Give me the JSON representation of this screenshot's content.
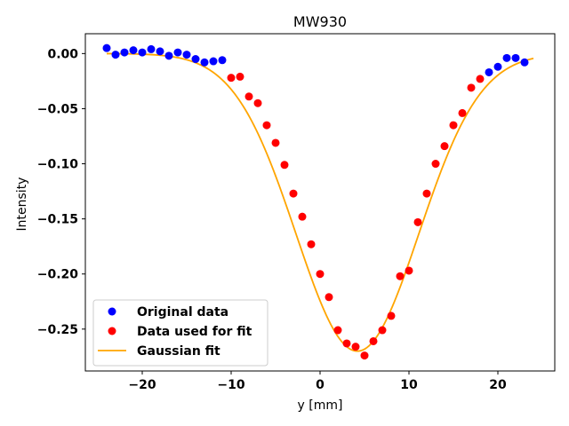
{
  "chart_data": {
    "type": "scatter",
    "title": "MW930",
    "xlabel": "y [mm]",
    "ylabel": "Intensity",
    "xlim": [
      -26.4,
      26.4
    ],
    "ylim": [
      -0.288,
      0.018
    ],
    "x_ticks": [
      -20,
      -10,
      0,
      10,
      20
    ],
    "x_tick_labels": [
      "−20",
      "−10",
      "0",
      "10",
      "20"
    ],
    "y_ticks": [
      0.0,
      -0.05,
      -0.1,
      -0.15,
      -0.2,
      -0.25
    ],
    "y_tick_labels": [
      "0.00",
      "−0.05",
      "−0.10",
      "−0.15",
      "−0.20",
      "−0.25"
    ],
    "grid": false,
    "legend_position": "lower-left",
    "series": [
      {
        "name": "Original data",
        "kind": "scatter",
        "color": "#0000ff",
        "x": [
          -24,
          -23,
          -22,
          -21,
          -20,
          -19,
          -18,
          -17,
          -16,
          -15,
          -14,
          -13,
          -12,
          -11,
          19,
          20,
          21,
          22,
          23
        ],
        "y": [
          0.005,
          -0.001,
          0.001,
          0.003,
          0.001,
          0.004,
          0.002,
          -0.002,
          0.001,
          -0.001,
          -0.005,
          -0.008,
          -0.007,
          -0.006,
          -0.017,
          -0.012,
          -0.004,
          -0.004,
          -0.008
        ]
      },
      {
        "name": "Data used for fit",
        "kind": "scatter",
        "color": "#ff0000",
        "x": [
          -10,
          -9,
          -8,
          -7,
          -6,
          -5,
          -4,
          -3,
          -2,
          -1,
          0,
          1,
          2,
          3,
          4,
          5,
          6,
          7,
          8,
          9,
          10,
          11,
          12,
          13,
          14,
          15,
          16,
          17,
          18
        ],
        "y": [
          -0.022,
          -0.021,
          -0.039,
          -0.045,
          -0.065,
          -0.081,
          -0.101,
          -0.127,
          -0.148,
          -0.173,
          -0.2,
          -0.221,
          -0.251,
          -0.263,
          -0.266,
          -0.274,
          -0.261,
          -0.251,
          -0.238,
          -0.202,
          -0.197,
          -0.153,
          -0.127,
          -0.1,
          -0.084,
          -0.065,
          -0.054,
          -0.031,
          -0.023
        ]
      },
      {
        "name": "Gaussian fit",
        "kind": "line",
        "color": "#ffa500",
        "function": "gaussian",
        "amplitude": -0.27,
        "center": 4.2,
        "sigma": 6.9,
        "offset": 0.0,
        "x_range": [
          -24,
          24
        ]
      }
    ]
  }
}
